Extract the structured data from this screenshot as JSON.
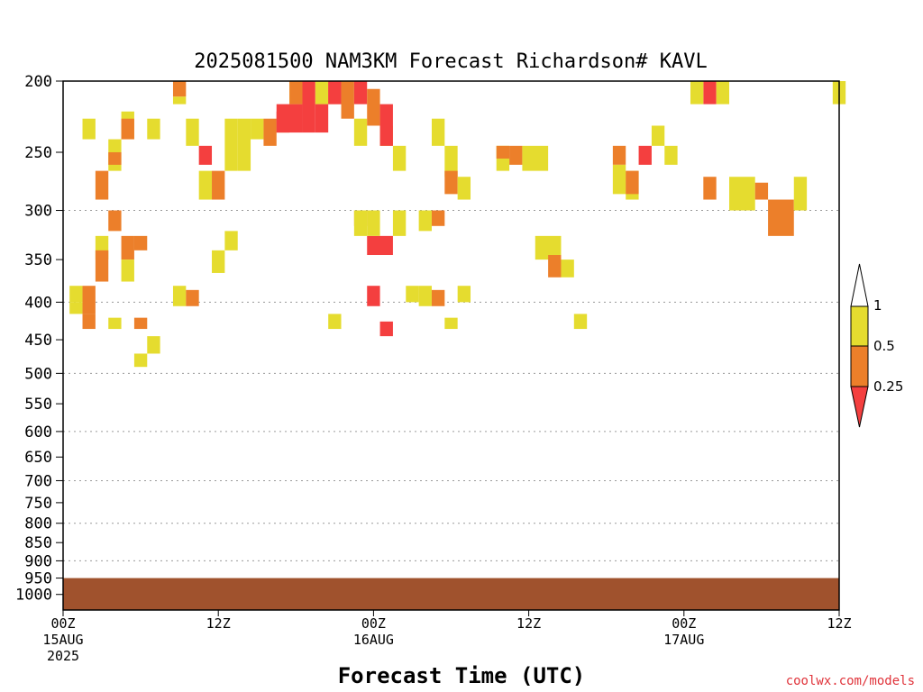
{
  "chart_data": {
    "type": "heatmap",
    "title": "2025081500 NAM3KM Forecast Richardson# KAVL",
    "xlabel": "Forecast Time (UTC)",
    "ylabel": "",
    "credit": "coolwx.com/models",
    "x_unit": "forecast hour",
    "xlim": [
      0,
      60
    ],
    "x_ticks": [
      {
        "hour": 0,
        "lines": [
          "00Z",
          "15AUG",
          "2025"
        ]
      },
      {
        "hour": 12,
        "lines": [
          "12Z"
        ]
      },
      {
        "hour": 24,
        "lines": [
          "00Z",
          "16AUG"
        ]
      },
      {
        "hour": 36,
        "lines": [
          "12Z"
        ]
      },
      {
        "hour": 48,
        "lines": [
          "00Z",
          "17AUG"
        ]
      },
      {
        "hour": 60,
        "lines": [
          "12Z"
        ]
      }
    ],
    "y_unit": "pressure level (hPa)",
    "ylim": [
      1050,
      200
    ],
    "y_ticks": [
      200,
      250,
      300,
      350,
      400,
      450,
      500,
      550,
      600,
      650,
      700,
      750,
      800,
      850,
      900,
      950,
      1000
    ],
    "gridlines_at": [
      300,
      400,
      500,
      600,
      700,
      800,
      900,
      1000
    ],
    "grid": true,
    "ground_level_hPa": 950,
    "ground_color": "#a0522d",
    "colorbar": {
      "labels": [
        "1",
        "0.5",
        "0.25"
      ],
      "bins": [
        {
          "range": "<0.25",
          "color": "#f43f3f"
        },
        {
          "range": "0.25-0.5",
          "color": "#ec7f2a"
        },
        {
          "range": "0.5-1",
          "color": "#e5dc2f"
        },
        {
          "range": ">1",
          "color": "#ffffff"
        }
      ],
      "colors": {
        "red": "#f43f3f",
        "orange": "#ec7f2a",
        "yellow": "#e5dc2f"
      }
    },
    "cells": [
      [
        "y",
        0.5,
        1.5,
        380,
        400
      ],
      [
        "y",
        0.5,
        1.5,
        400,
        415
      ],
      [
        "o",
        1.5,
        2.5,
        380,
        415
      ],
      [
        "o",
        1.5,
        2.5,
        415,
        435
      ],
      [
        "y",
        1.5,
        2.5,
        225,
        240
      ],
      [
        "o",
        2.5,
        3.5,
        265,
        290
      ],
      [
        "y",
        2.5,
        3.5,
        325,
        350
      ],
      [
        "o",
        2.5,
        3.5,
        340,
        375
      ],
      [
        "y",
        3.5,
        4.5,
        240,
        265
      ],
      [
        "o",
        3.5,
        4.5,
        250,
        260
      ],
      [
        "o",
        3.5,
        4.5,
        300,
        320
      ],
      [
        "y",
        3.5,
        4.5,
        420,
        435
      ],
      [
        "y",
        4.5,
        5.5,
        220,
        240
      ],
      [
        "o",
        4.5,
        5.5,
        225,
        240
      ],
      [
        "o",
        4.5,
        5.5,
        325,
        350
      ],
      [
        "y",
        4.5,
        5.5,
        350,
        375
      ],
      [
        "o",
        5.5,
        6.5,
        325,
        340
      ],
      [
        "o",
        5.5,
        6.5,
        420,
        435
      ],
      [
        "y",
        6.5,
        7.5,
        225,
        240
      ],
      [
        "y",
        6.5,
        7.5,
        445,
        470
      ],
      [
        "y",
        5.5,
        6.5,
        470,
        490
      ],
      [
        "o",
        8.5,
        9.5,
        200,
        210
      ],
      [
        "y",
        8.5,
        9.5,
        210,
        215
      ],
      [
        "y",
        8.5,
        9.5,
        380,
        405
      ],
      [
        "o",
        9.5,
        10.5,
        385,
        405
      ],
      [
        "y",
        9.5,
        10.5,
        225,
        245
      ],
      [
        "r",
        10.5,
        11.5,
        245,
        260
      ],
      [
        "y",
        10.5,
        11.5,
        265,
        290
      ],
      [
        "o",
        11.5,
        12.5,
        265,
        290
      ],
      [
        "y",
        11.5,
        12.5,
        340,
        365
      ],
      [
        "y",
        12.5,
        13.5,
        225,
        265
      ],
      [
        "y",
        12.5,
        13.5,
        320,
        340
      ],
      [
        "y",
        13.5,
        14.5,
        225,
        265
      ],
      [
        "y",
        14.5,
        15.5,
        225,
        240
      ],
      [
        "o",
        15.5,
        16.5,
        225,
        245
      ],
      [
        "y",
        16.5,
        17.5,
        225,
        235
      ],
      [
        "r",
        16.5,
        17.5,
        220,
        235
      ],
      [
        "y",
        17.5,
        18.5,
        200,
        215
      ],
      [
        "r",
        16.5,
        18.5,
        215,
        235
      ],
      [
        "o",
        17.5,
        18.5,
        200,
        215
      ],
      [
        "r",
        18.5,
        19.5,
        200,
        235
      ],
      [
        "y",
        19.5,
        20.5,
        200,
        215
      ],
      [
        "r",
        19.5,
        20.5,
        215,
        235
      ],
      [
        "o",
        20.5,
        21.5,
        200,
        215
      ],
      [
        "r",
        20.5,
        21.5,
        200,
        215
      ],
      [
        "o",
        21.5,
        22.5,
        200,
        225
      ],
      [
        "r",
        22.5,
        23.5,
        200,
        215
      ],
      [
        "y",
        22.5,
        23.5,
        225,
        245
      ],
      [
        "o",
        23.5,
        24.5,
        205,
        230
      ],
      [
        "y",
        24.5,
        25.5,
        230,
        245
      ],
      [
        "r",
        24.5,
        25.5,
        215,
        245
      ],
      [
        "y",
        25.5,
        26.5,
        245,
        265
      ],
      [
        "y",
        25.5,
        26.5,
        300,
        325
      ],
      [
        "o",
        22.5,
        23.5,
        300,
        315
      ],
      [
        "r",
        23.5,
        25.5,
        325,
        345
      ],
      [
        "y",
        27.5,
        28.5,
        300,
        320
      ],
      [
        "o",
        28.5,
        29.5,
        300,
        315
      ],
      [
        "y",
        28.5,
        29.5,
        225,
        245
      ],
      [
        "y",
        29.5,
        30.5,
        245,
        270
      ],
      [
        "o",
        29.5,
        30.5,
        265,
        285
      ],
      [
        "y",
        30.5,
        31.5,
        270,
        290
      ],
      [
        "y",
        33.5,
        34.5,
        245,
        265
      ],
      [
        "o",
        33.5,
        34.5,
        245,
        255
      ],
      [
        "o",
        34.5,
        35.5,
        245,
        260
      ],
      [
        "y",
        35.5,
        37.5,
        245,
        265
      ],
      [
        "y",
        36.5,
        38.5,
        325,
        350
      ],
      [
        "o",
        37.5,
        38.5,
        345,
        370
      ],
      [
        "y",
        38.5,
        39.5,
        350,
        370
      ],
      [
        "y",
        39.5,
        40.5,
        415,
        435
      ],
      [
        "y",
        43.5,
        44.5,
        265,
        290
      ],
      [
        "o",
        42.5,
        43.5,
        245,
        260
      ],
      [
        "y",
        42.5,
        43.5,
        260,
        285
      ],
      [
        "o",
        43.5,
        44.5,
        265,
        285
      ],
      [
        "r",
        44.5,
        45.5,
        245,
        260
      ],
      [
        "y",
        45.5,
        46.5,
        230,
        245
      ],
      [
        "y",
        46.5,
        47.5,
        245,
        260
      ],
      [
        "r",
        49.5,
        50.5,
        200,
        215
      ],
      [
        "y",
        48.5,
        49.5,
        200,
        215
      ],
      [
        "o",
        49.5,
        50.5,
        270,
        290
      ],
      [
        "y",
        50.5,
        51.5,
        200,
        215
      ],
      [
        "y",
        51.5,
        53.5,
        270,
        300
      ],
      [
        "o",
        53.5,
        54.5,
        275,
        290
      ],
      [
        "o",
        54.5,
        56.5,
        290,
        325
      ],
      [
        "y",
        56.5,
        57.5,
        270,
        300
      ],
      [
        "y",
        59.5,
        60.5,
        200,
        215
      ],
      [
        "y",
        22.5,
        23.5,
        300,
        325
      ],
      [
        "y",
        23.5,
        24.5,
        300,
        325
      ],
      [
        "r",
        23.5,
        24.5,
        380,
        405
      ],
      [
        "y",
        20.5,
        21.5,
        415,
        435
      ],
      [
        "r",
        24.5,
        25.5,
        425,
        445
      ],
      [
        "y",
        26.5,
        27.5,
        380,
        400
      ],
      [
        "y",
        27.5,
        28.5,
        380,
        405
      ],
      [
        "o",
        28.5,
        29.5,
        385,
        405
      ],
      [
        "y",
        29.5,
        30.5,
        420,
        435
      ],
      [
        "y",
        30.5,
        31.5,
        380,
        400
      ]
    ]
  }
}
